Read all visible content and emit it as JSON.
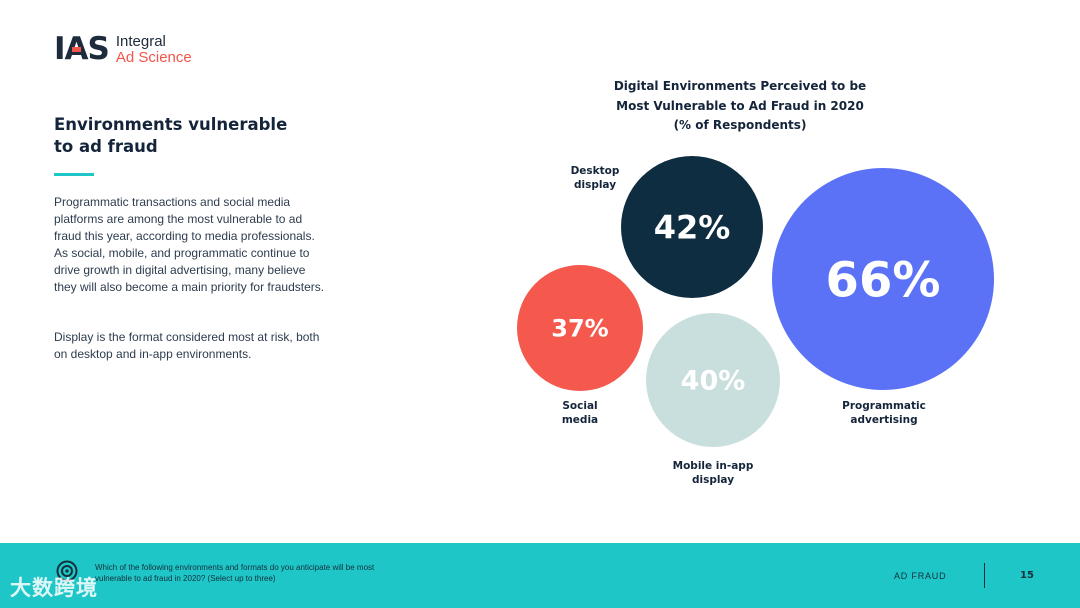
{
  "brand": {
    "mark": "IAS",
    "word1": "Integral",
    "word2": "Ad Science",
    "colors": {
      "navy": "#1d2b3c",
      "coral": "#f2554a",
      "teal": "#1fc6c8"
    }
  },
  "intro": {
    "heading_line1": "Environments vulnerable",
    "heading_line2": "to ad fraud",
    "paragraph1": "Programmatic transactions and social media platforms are among the most vulnerable to ad fraud this year, according to media professionals. As social, mobile, and programmatic continue to drive growth in digital advertising, many believe they will also become a main priority for fraudsters.",
    "paragraph2": "Display is the format considered most at risk, both on desktop and in-app environments."
  },
  "chart_data": {
    "type": "bubble",
    "title_line1": "Digital Environments Perceived to be",
    "title_line2": "Most Vulnerable to Ad Fraud in 2020",
    "subtitle": "(% of Respondents)",
    "unit": "%",
    "items": [
      {
        "name": "Desktop display",
        "value": 42,
        "color": "#0f2d40",
        "label_lines": [
          "Desktop",
          "display"
        ]
      },
      {
        "name": "Programmatic advertising",
        "value": 66,
        "color": "#5b72f6",
        "label_lines": [
          "Programmatic",
          "advertising"
        ]
      },
      {
        "name": "Social media",
        "value": 37,
        "color": "#f5584d",
        "label_lines": [
          "Social",
          "media"
        ]
      },
      {
        "name": "Mobile in-app display",
        "value": 40,
        "color": "#c9dfde",
        "label_lines": [
          "Mobile in-app",
          "display"
        ]
      }
    ]
  },
  "footer": {
    "question": "Which of the following environments and formats do you anticipate will be most vulnerable to ad fraud in 2020? (Select up to three)",
    "section": "AD FRAUD",
    "page": "15",
    "icon": "target-icon",
    "watermark": "大数跨境"
  }
}
